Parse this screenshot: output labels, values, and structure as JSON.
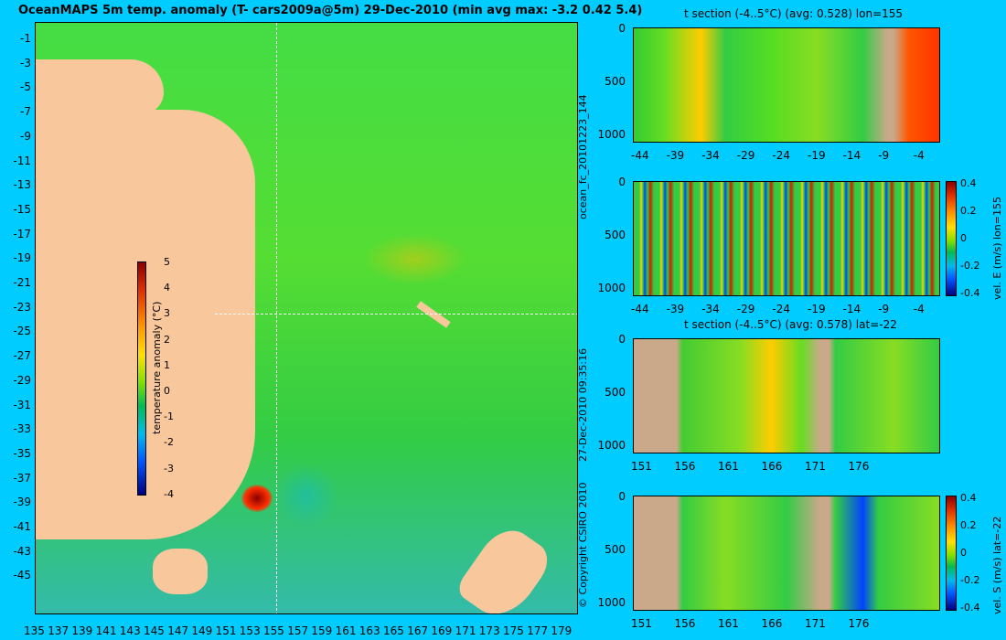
{
  "map": {
    "title": "OceanMAPS 5m temp. anomaly (T- cars2009a@5m) 29-Dec-2010 (min avg max: -3.2 0.42 5.4)",
    "lat_ticks": [
      "-1",
      "-3",
      "-5",
      "-7",
      "-9",
      "-11",
      "-13",
      "-15",
      "-17",
      "-19",
      "-21",
      "-23",
      "-25",
      "-27",
      "-29",
      "-31",
      "-33",
      "-35",
      "-37",
      "-39",
      "-41",
      "-43",
      "-45"
    ],
    "lon_ticks": [
      "135",
      "137",
      "139",
      "141",
      "143",
      "145",
      "147",
      "149",
      "151",
      "153",
      "155",
      "157",
      "159",
      "161",
      "163",
      "165",
      "167",
      "169",
      "171",
      "173",
      "175",
      "177",
      "179"
    ],
    "colorbar": {
      "label": "temperature anomaly (°C)",
      "ticks": [
        "5",
        "4",
        "3",
        "2",
        "1",
        "0",
        "-1",
        "-2",
        "-3",
        "-4"
      ]
    }
  },
  "side_labels": {
    "forecast_id": "ocean_fc_20101223_144",
    "timestamp": "27-Dec-2010 09:35:16",
    "copyright": "© Copyright CSIRO 2010"
  },
  "panels": [
    {
      "title": "t section (-4..5°C) (avg: 0.528) lon=155",
      "y_ticks": [
        "0",
        "500",
        "1000"
      ],
      "x_ticks": [
        "-44",
        "-39",
        "-34",
        "-29",
        "-24",
        "-19",
        "-14",
        "-9",
        "-4"
      ],
      "cbar_label": ""
    },
    {
      "title": "",
      "y_ticks": [
        "0",
        "500",
        "1000"
      ],
      "x_ticks": [
        "-44",
        "-39",
        "-34",
        "-29",
        "-24",
        "-19",
        "-14",
        "-9",
        "-4"
      ],
      "cbar_label": "vel. E (m/s) lon=155",
      "cbar_ticks": [
        "0.4",
        "0.2",
        "0",
        "-0.2",
        "-0.4"
      ]
    },
    {
      "title": "t section (-4..5°C) (avg: 0.578) lat=-22",
      "y_ticks": [
        "0",
        "500",
        "1000"
      ],
      "x_ticks": [
        "151",
        "156",
        "161",
        "166",
        "171",
        "176"
      ],
      "cbar_label": ""
    },
    {
      "title": "",
      "y_ticks": [
        "0",
        "500",
        "1000"
      ],
      "x_ticks": [
        "151",
        "156",
        "161",
        "166",
        "171",
        "176"
      ],
      "cbar_label": "vel. S (m/s) lat=-22",
      "cbar_ticks": [
        "0.4",
        "0.2",
        "0",
        "-0.2",
        "-0.4"
      ]
    }
  ]
}
